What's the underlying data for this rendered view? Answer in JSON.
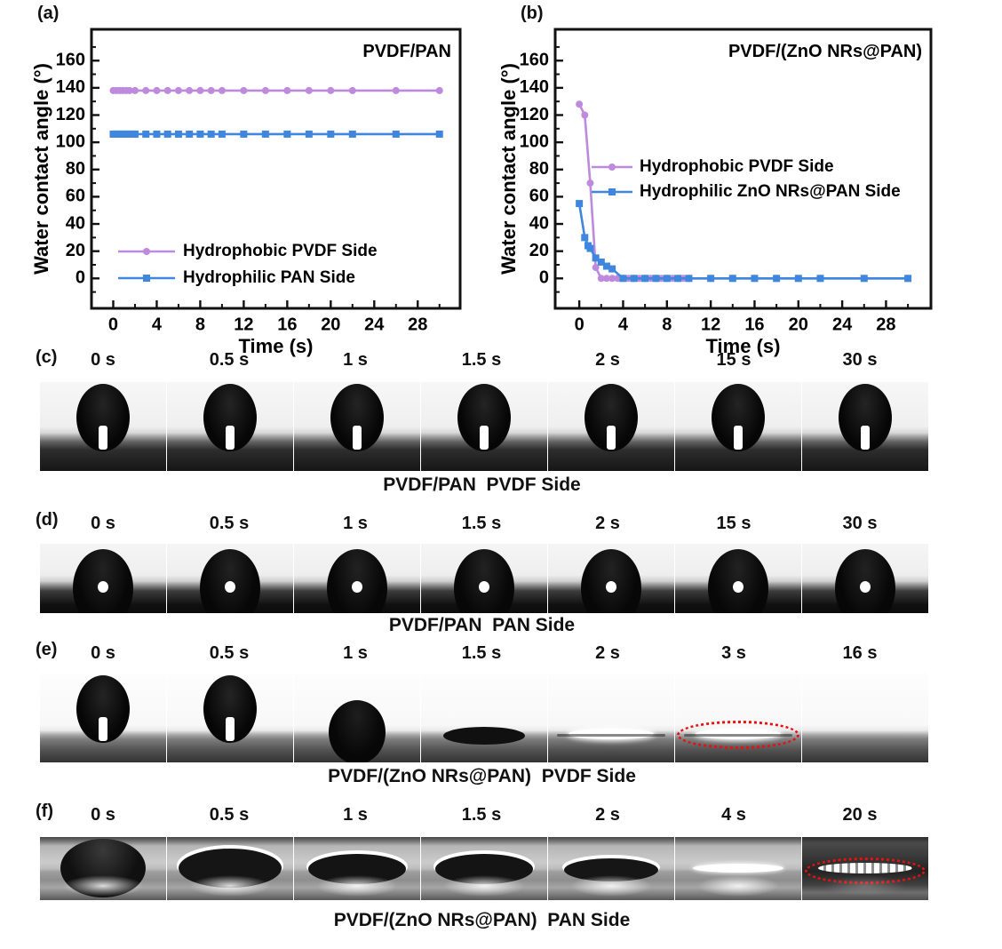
{
  "figure": {
    "panel_labels": {
      "a": "(a)",
      "b": "(b)",
      "c": "(c)",
      "d": "(d)",
      "e": "(e)",
      "f": "(f)"
    }
  },
  "colors": {
    "purple_series": "#bd8ade",
    "blue_series": "#3f86de",
    "red_dashed": "#e8100f",
    "axis": "#111111"
  },
  "chart_data": [
    {
      "type": "line",
      "panel": "a",
      "inner_title": "PVDF/PAN",
      "xlabel": "Time (s)",
      "ylabel": "Water contact angle (°)",
      "xlim": [
        -2,
        31.9
      ],
      "ylim": [
        -22,
        183
      ],
      "xticks": [
        0,
        4,
        8,
        12,
        16,
        20,
        24,
        28
      ],
      "yticks": [
        0,
        20,
        40,
        60,
        80,
        100,
        120,
        140,
        160
      ],
      "grid": false,
      "legend_position": "lower-left",
      "series": [
        {
          "name": "Hydrophobic PVDF Side",
          "color": "#bd8ade",
          "marker": "circle",
          "x": [
            0,
            0.3,
            0.6,
            0.9,
            1.2,
            1.5,
            2,
            3,
            4,
            5,
            6,
            7,
            8,
            9,
            10,
            12,
            14,
            16,
            18,
            20,
            22,
            26,
            30
          ],
          "y": [
            138,
            138,
            138,
            138,
            138,
            138,
            138,
            138,
            138,
            138,
            138,
            138,
            138,
            138,
            138,
            138,
            138,
            138,
            138,
            138,
            138,
            138,
            138
          ]
        },
        {
          "name": "Hydrophilic PAN Side",
          "color": "#3f86de",
          "marker": "square",
          "x": [
            0,
            0.2,
            0.4,
            0.6,
            0.8,
            1,
            1.2,
            1.4,
            1.6,
            1.8,
            2,
            3,
            4,
            5,
            6,
            7,
            8,
            9,
            10,
            12,
            14,
            16,
            18,
            20,
            22,
            26,
            30
          ],
          "y": [
            106,
            106,
            106,
            106,
            106,
            106,
            106,
            106,
            106,
            106,
            106,
            106,
            106,
            106,
            106,
            106,
            106,
            106,
            106,
            106,
            106,
            106,
            106,
            106,
            106,
            106,
            106
          ]
        }
      ]
    },
    {
      "type": "line",
      "panel": "b",
      "inner_title": "PVDF/(ZnO NRs@PAN)",
      "xlabel": "Time (s)",
      "ylabel": "Water contact angle (°)",
      "xlim": [
        -2.2,
        32.1
      ],
      "ylim": [
        -22,
        183
      ],
      "xticks": [
        0,
        4,
        8,
        12,
        16,
        20,
        24,
        28
      ],
      "yticks": [
        0,
        20,
        40,
        60,
        80,
        100,
        120,
        140,
        160
      ],
      "grid": false,
      "legend_position": "center-right",
      "series": [
        {
          "name": "Hydrophobic PVDF Side",
          "color": "#bd8ade",
          "marker": "circle",
          "x": [
            0,
            0.5,
            1,
            1.5,
            2,
            2.5,
            3,
            3.5,
            4,
            4.5,
            5,
            5.5,
            6,
            6.5,
            7,
            7.5,
            8,
            8.5,
            9,
            9.5,
            10,
            12,
            14,
            16,
            18,
            20,
            22,
            26,
            30
          ],
          "y": [
            128,
            120,
            70,
            8,
            0,
            0,
            0,
            0,
            0,
            0,
            0,
            0,
            0,
            0,
            0,
            0,
            0,
            0,
            0,
            0,
            0,
            0,
            0,
            0,
            0,
            0,
            0,
            0,
            0
          ]
        },
        {
          "name": "Hydrophilic ZnO NRs@PAN Side",
          "color": "#3f86de",
          "marker": "square",
          "x": [
            0,
            0.5,
            0.8,
            1,
            1.5,
            2,
            2.5,
            3,
            4,
            5,
            6,
            7,
            8,
            9,
            10,
            12,
            14,
            16,
            18,
            20,
            22,
            26,
            30
          ],
          "y": [
            55,
            30,
            24,
            22,
            15,
            12,
            9,
            7,
            0,
            0,
            0,
            0,
            0,
            0,
            0,
            0,
            0,
            0,
            0,
            0,
            0,
            0,
            0
          ]
        }
      ]
    }
  ],
  "photo_rows": [
    {
      "id": "c",
      "label": "(c)",
      "times": [
        "0 s",
        "0.5 s",
        "1 s",
        "1.5 s",
        "2 s",
        "15 s",
        "30 s"
      ],
      "caption": "PVDF/PAN  PVDF Side",
      "shapes": [
        "tall",
        "tall",
        "tall",
        "tall",
        "tall",
        "tall",
        "tall"
      ]
    },
    {
      "id": "d",
      "label": "(d)",
      "times": [
        "0 s",
        "0.5 s",
        "1 s",
        "1.5 s",
        "2 s",
        "15 s",
        "30 s"
      ],
      "caption": "PVDF/PAN  PAN Side",
      "shapes": [
        "dome",
        "dome",
        "dome",
        "dome",
        "dome",
        "dome",
        "dome"
      ]
    },
    {
      "id": "e",
      "label": "(e)",
      "times": [
        "0 s",
        "0.5 s",
        "1 s",
        "1.5 s",
        "2 s",
        "3 s",
        "16 s"
      ],
      "caption": "PVDF/(ZnO NRs@PAN)  PVDF Side",
      "shapes": [
        "tall",
        "tall",
        "dome-small",
        "bump",
        "flat-glow",
        "flat-red",
        "surface"
      ]
    },
    {
      "id": "f",
      "label": "(f)",
      "times": [
        "0 s",
        "0.5 s",
        "1 s",
        "1.5 s",
        "2 s",
        "4 s",
        "20 s"
      ],
      "caption": "PVDF/(ZnO NRs@PAN)  PAN Side",
      "shapes": [
        "ball",
        "lens-high",
        "lens",
        "lens",
        "lens-low",
        "sliver",
        "streak-red"
      ]
    }
  ]
}
